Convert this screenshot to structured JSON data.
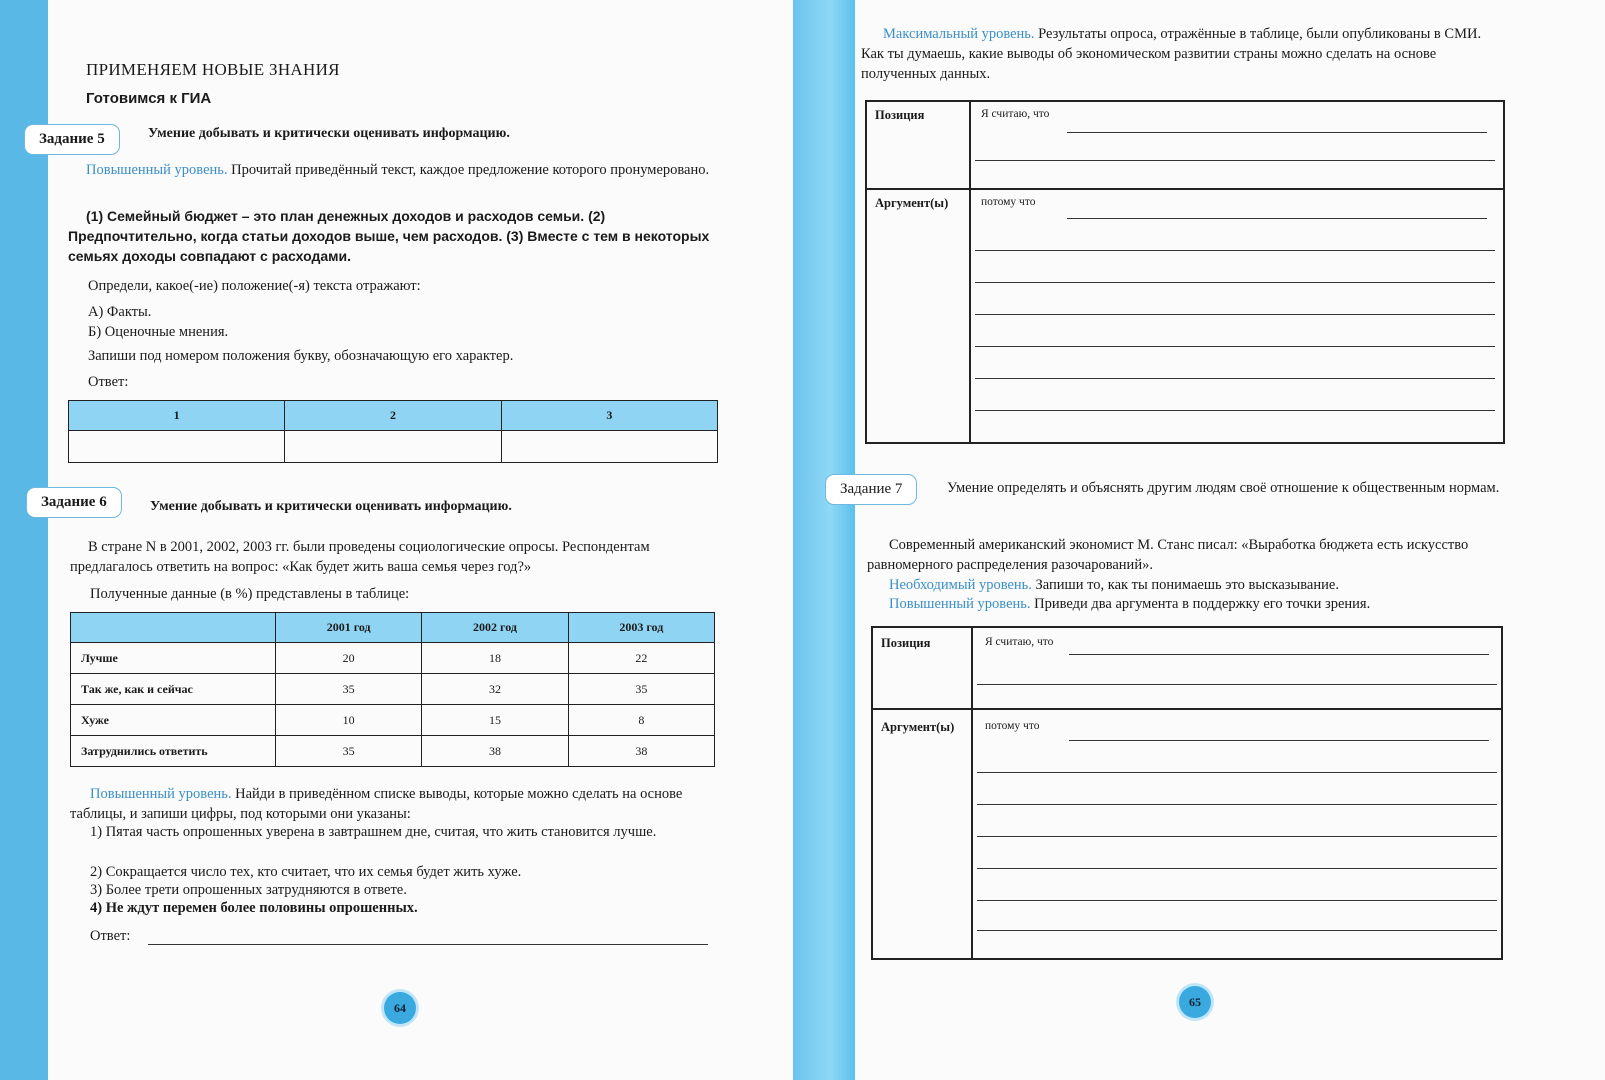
{
  "left_page": {
    "section_title": "ПРИМЕНЯЕМ НОВЫЕ ЗНАНИЯ",
    "subtitle": "Готовимся к ГИА",
    "task5": {
      "label": "Задание 5",
      "skill": "Умение добывать и критически оценивать информацию.",
      "level": "Повышенный уровень.",
      "intro": "Прочитай приведённый текст, каждое предложение которого пронумеровано.",
      "text": "(1) Семейный бюджет – это план денежных доходов и расходов семьи. (2) Предпочтительно, когда статьи доходов выше, чем расходов. (3) Вместе с тем в некоторых семьях доходы совпадают с расходами.",
      "question": "Определи, какое(-ие) положение(-я) текста отражают:",
      "options": [
        "А) Факты.",
        "Б) Оценочные мнения."
      ],
      "instruction": "Запиши под номером положения букву, обозначающую его характер.",
      "answer_label": "Ответ:",
      "answer_columns": [
        "1",
        "2",
        "3"
      ]
    },
    "task6": {
      "label": "Задание 6",
      "skill": "Умение добывать и критически оценивать информацию.",
      "intro": "В стране N в 2001, 2002, 2003 гг. были проведены социологические опросы. Респондентам предлагалось ответить на вопрос: «Как будет жить ваша семья через год?»",
      "table_caption": "Полученные данные (в %) представлены в таблице:",
      "table": {
        "columns": [
          "",
          "2001 год",
          "2002 год",
          "2003 год"
        ],
        "rows": [
          [
            "Лучше",
            "20",
            "18",
            "22"
          ],
          [
            "Так же, как и сейчас",
            "35",
            "32",
            "35"
          ],
          [
            "Хуже",
            "10",
            "15",
            "8"
          ],
          [
            "Затруднились ответить",
            "35",
            "38",
            "38"
          ]
        ]
      },
      "level": "Повышенный уровень.",
      "question": "Найди в приведённом списке выводы, которые можно сделать на основе таблицы, и запиши цифры, под которыми они указаны:",
      "options": [
        "1) Пятая часть опрошенных уверена в завтрашнем дне, считая, что жить становится лучше.",
        "2) Сокращается число тех, кто считает, что их семья будет жить хуже.",
        "3) Более трети опрошенных затрудняются в ответе.",
        "4) Не ждут перемен более половины опрошенных."
      ],
      "answer_label": "Ответ:"
    },
    "page_number": "64"
  },
  "right_page": {
    "max_level": {
      "level": "Максимальный уровень.",
      "text": "Результаты опроса, отражённые в таблице, были опубликованы в СМИ. Как ты думаешь, какие выводы об экономическом развитии страны можно сделать на основе полученных данных."
    },
    "form1": {
      "position_label": "Позиция",
      "position_hint": "Я считаю, что",
      "argument_label": "Аргумент(ы)",
      "argument_hint": "потому что"
    },
    "task7": {
      "label": "Задание 7",
      "skill": "Умение определять и объяснять другим людям своё отношение к общественным нормам.",
      "quote": "Современный американский экономист М. Станс писал: «Выработка бюджета есть искусство равномерного распределения разочарований».",
      "level1": "Необходимый уровень.",
      "task1": "Запиши то, как ты понимаешь это высказывание.",
      "level2": "Повышенный уровень.",
      "task2": "Приведи два аргумента в поддержку его точки зрения."
    },
    "form2": {
      "position_label": "Позиция",
      "position_hint": "Я считаю, что",
      "argument_label": "Аргумент(ы)",
      "argument_hint": "потому что"
    },
    "page_number": "65"
  },
  "colors": {
    "margin_blue": "#5ab8e6",
    "level_text": "#3a8fc8",
    "table_header": "#8fd5f3"
  }
}
